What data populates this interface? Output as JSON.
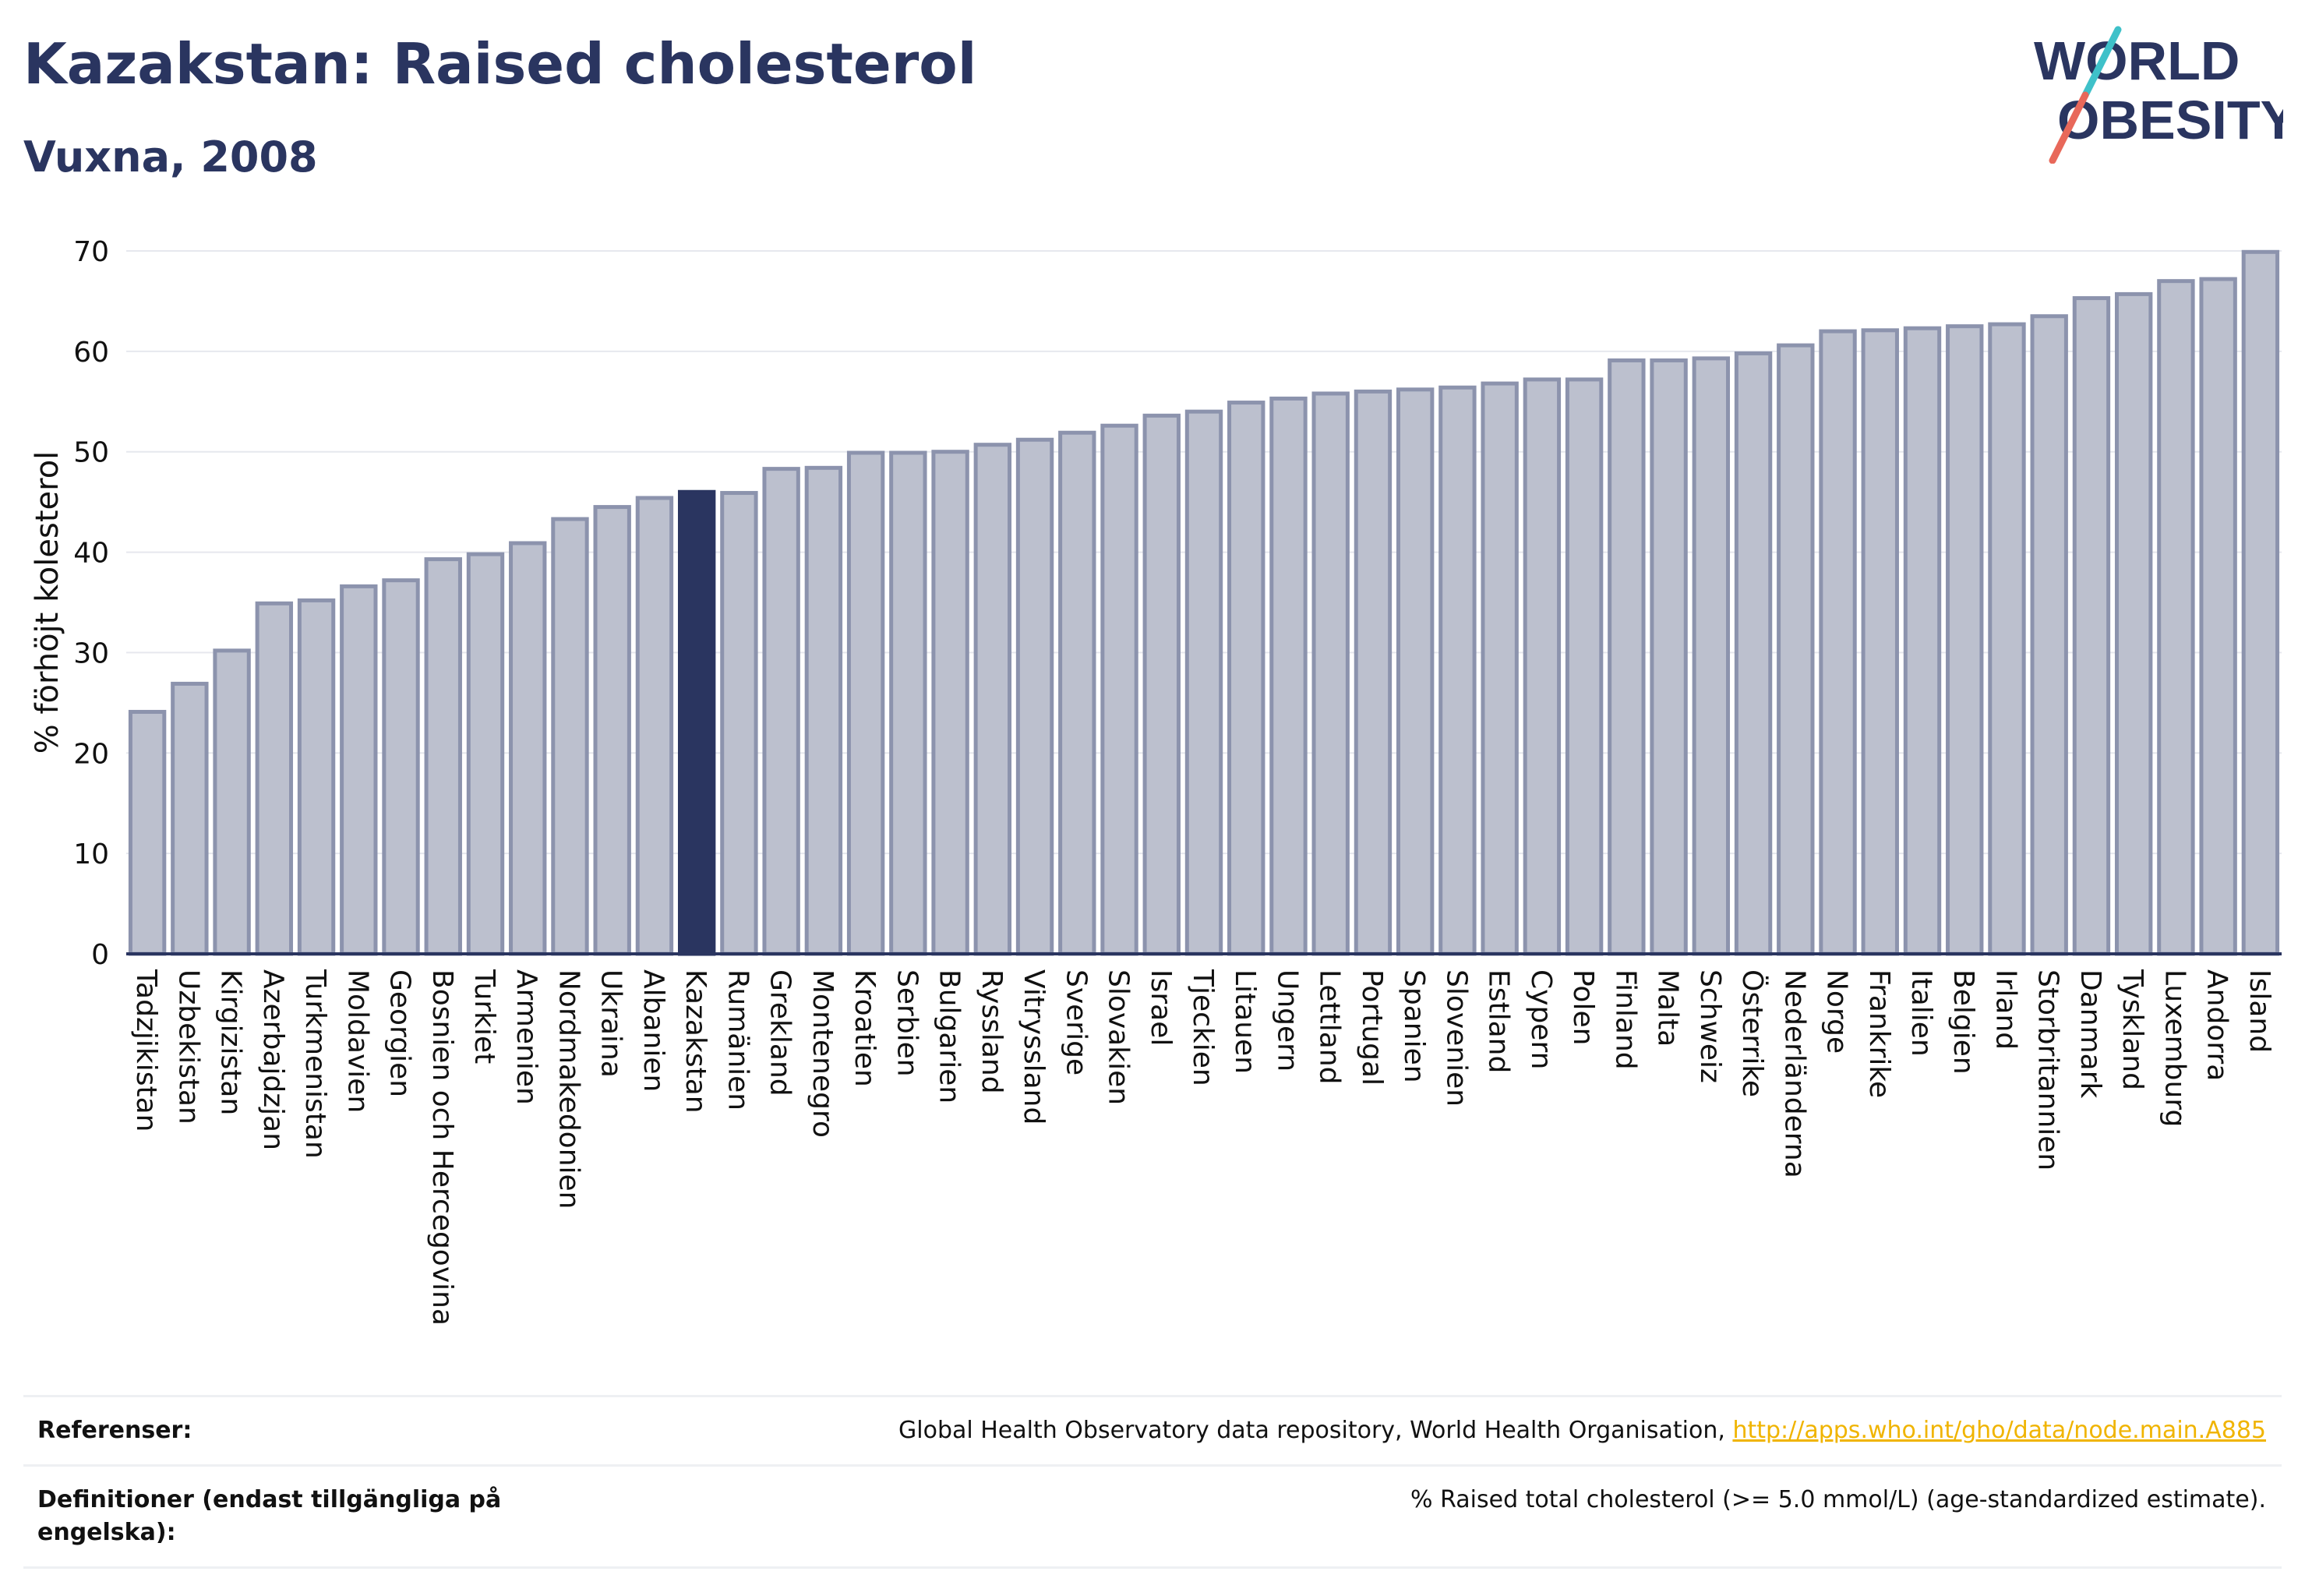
{
  "header": {
    "title": "Kazakstan: Raised cholesterol",
    "subtitle": "Vuxna, 2008",
    "logo_line1": "WORLD",
    "logo_line2": "OBESITY"
  },
  "colors": {
    "bar": "#bcc0ce",
    "bar_stroke": "#8c93ad",
    "highlight": "#2a3560",
    "text": "#2a3560",
    "link": "#f0b400",
    "logo_teal": "#3fc1c9",
    "logo_coral": "#e8685a"
  },
  "chart_data": {
    "type": "bar",
    "ylabel": "% förhöjt kolesterol",
    "xlabel": "",
    "ylim": [
      0,
      70
    ],
    "yticks": [
      0,
      10,
      20,
      30,
      40,
      50,
      60,
      70
    ],
    "grid": true,
    "highlight": "Kazakstan",
    "categories": [
      "Tadzjikistan",
      "Uzbekistan",
      "Kirgizistan",
      "Azerbajdzjan",
      "Turkmenistan",
      "Moldavien",
      "Georgien",
      "Bosnien och Hercegovina",
      "Turkiet",
      "Armenien",
      "Nordmakedonien",
      "Ukraina",
      "Albanien",
      "Kazakstan",
      "Rumänien",
      "Grekland",
      "Montenegro",
      "Kroatien",
      "Serbien",
      "Bulgarien",
      "Ryssland",
      "Vitryssland",
      "Sverige",
      "Slovakien",
      "Israel",
      "Tjeckien",
      "Litauen",
      "Ungern",
      "Lettland",
      "Portugal",
      "Spanien",
      "Slovenien",
      "Estland",
      "Cypern",
      "Polen",
      "Finland",
      "Malta",
      "Schweiz",
      "Österrike",
      "Nederländerna",
      "Norge",
      "Frankrike",
      "Italien",
      "Belgien",
      "Irland",
      "Storbritannien",
      "Danmark",
      "Tyskland",
      "Luxemburg",
      "Andorra",
      "Island"
    ],
    "values": [
      24.1,
      26.9,
      30.2,
      34.9,
      35.2,
      36.6,
      37.2,
      39.3,
      39.8,
      40.9,
      43.3,
      44.5,
      45.4,
      46.0,
      45.9,
      48.3,
      48.4,
      49.9,
      49.9,
      50.0,
      50.7,
      51.2,
      51.9,
      52.6,
      53.6,
      54.0,
      54.9,
      55.3,
      55.8,
      56.0,
      56.2,
      56.4,
      56.8,
      57.2,
      57.2,
      59.1,
      59.1,
      59.3,
      59.8,
      60.6,
      62.0,
      62.1,
      62.3,
      62.5,
      62.7,
      63.5,
      65.3,
      65.7,
      67.0,
      67.2,
      69.9
    ]
  },
  "footer": {
    "references_label": "Referenser:",
    "references_text": "Global Health Observatory data repository, World Health Organisation, ",
    "references_link": "http://apps.who.int/gho/data/node.main.A885",
    "definitions_label": "Definitioner (endast tillgängliga på engelska):",
    "definitions_text": "% Raised total cholesterol (>= 5.0 mmol/L) (age-standardized estimate)."
  }
}
